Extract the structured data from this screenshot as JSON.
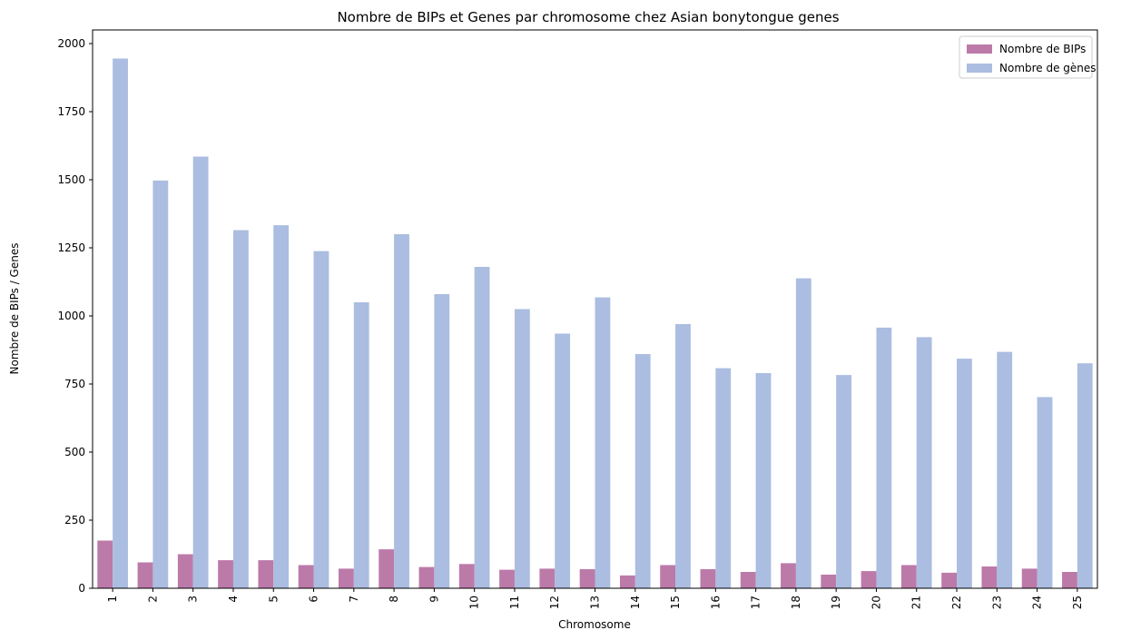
{
  "chart_data": {
    "type": "bar",
    "title": "Nombre de BIPs et Genes par chromosome chez Asian bonytongue genes",
    "xlabel": "Chromosome",
    "ylabel": "Nombre de BIPs / Genes",
    "ylim": [
      0,
      2050
    ],
    "yticks": [
      0,
      250,
      500,
      750,
      1000,
      1250,
      1500,
      1750,
      2000
    ],
    "grid": false,
    "legend_position": "top-right",
    "categories": [
      "1",
      "2",
      "3",
      "4",
      "5",
      "6",
      "7",
      "8",
      "9",
      "10",
      "11",
      "12",
      "13",
      "14",
      "15",
      "16",
      "17",
      "18",
      "19",
      "20",
      "21",
      "22",
      "23",
      "24",
      "25"
    ],
    "series": [
      {
        "name": "Nombre de BIPs",
        "color": "#bc7aa9",
        "values": [
          175,
          95,
          125,
          103,
          103,
          85,
          72,
          143,
          78,
          89,
          68,
          72,
          70,
          47,
          85,
          70,
          60,
          92,
          50,
          63,
          85,
          57,
          80,
          72,
          60
        ]
      },
      {
        "name": "Nombre de gènes",
        "color": "#abbde0",
        "values": [
          1945,
          1497,
          1585,
          1315,
          1333,
          1238,
          1050,
          1300,
          1080,
          1180,
          1025,
          935,
          1068,
          860,
          970,
          808,
          790,
          1138,
          783,
          957,
          922,
          843,
          868,
          702,
          826
        ]
      }
    ]
  }
}
